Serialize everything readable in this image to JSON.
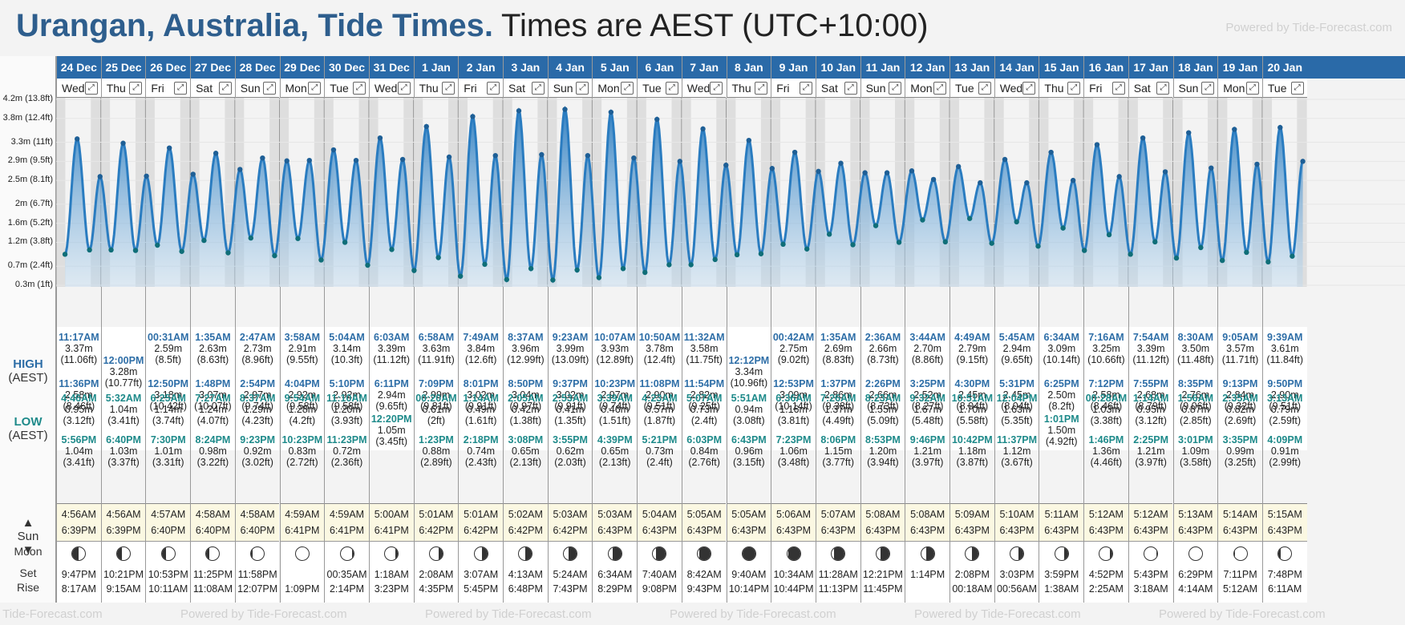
{
  "title": {
    "location": "Urangan, Australia, Tide Times.",
    "timezone": "Times are AEST (UTC+10:00)",
    "powered": "Powered by Tide-Forecast.com"
  },
  "labels": {
    "high": "HIGH",
    "high_sub": "(AEST)",
    "low": "LOW",
    "low_sub": "(AEST)",
    "sun": "Sun",
    "moon": "Moon",
    "set": "Set",
    "rise": "Rise"
  },
  "y_axis": [
    "4.2m (13.8ft)",
    "3.8m (12.4ft)",
    "3.3m (11ft)",
    "2.9m (9.5ft)",
    "2.5m (8.1ft)",
    "2m (6.7ft)",
    "1.6m (5.2ft)",
    "1.2m (3.8ft)",
    "0.7m (2.4ft)",
    "0.3m (1ft)"
  ],
  "footer": [
    "Powered by Tide-Forecast.com",
    "Powered by Tide-Forecast.com",
    "Powered by Tide-Forecast.com",
    "Powered by Tide-Forecast.com",
    "Powered by Tide-Forecast.com",
    "Powered by Tide-Forecast.com"
  ],
  "days": [
    {
      "date": "24 Dec",
      "dow": "Wed",
      "highs": [
        [
          "11:17AM",
          "3.37m",
          "(11.06ft)"
        ],
        [
          "11:36PM",
          "2.58m",
          "(8.46ft)"
        ]
      ],
      "lows": [
        [
          "4:46AM",
          "0.95m",
          "(3.12ft)"
        ],
        [
          "5:56PM",
          "1.04m",
          "(3.41ft)"
        ]
      ],
      "sunrise": "4:56AM",
      "sunset": "6:39PM",
      "moon_set": "9:47PM",
      "moon_rise": "8:17AM"
    },
    {
      "date": "25 Dec",
      "dow": "Thu",
      "highs": [
        [
          "12:00PM",
          "3.28m",
          "(10.77ft)"
        ]
      ],
      "lows": [
        [
          "5:32AM",
          "1.04m",
          "(3.41ft)"
        ],
        [
          "6:40PM",
          "1.03m",
          "(3.37ft)"
        ]
      ],
      "sunrise": "4:56AM",
      "sunset": "6:39PM",
      "moon_set": "10:21PM",
      "moon_rise": "9:15AM"
    },
    {
      "date": "26 Dec",
      "dow": "Fri",
      "highs": [
        [
          "00:31AM",
          "2.59m",
          "(8.5ft)"
        ],
        [
          "12:50PM",
          "3.18m",
          "(10.42ft)"
        ]
      ],
      "lows": [
        [
          "6:25AM",
          "1.14m",
          "(3.74ft)"
        ],
        [
          "7:30PM",
          "1.01m",
          "(3.31ft)"
        ]
      ],
      "sunrise": "4:57AM",
      "sunset": "6:40PM",
      "moon_set": "10:53PM",
      "moon_rise": "10:11AM"
    },
    {
      "date": "27 Dec",
      "dow": "Sat",
      "highs": [
        [
          "1:35AM",
          "2.63m",
          "(8.63ft)"
        ],
        [
          "1:48PM",
          "3.07m",
          "(10.07ft)"
        ]
      ],
      "lows": [
        [
          "7:27AM",
          "1.24m",
          "(4.07ft)"
        ],
        [
          "8:24PM",
          "0.98m",
          "(3.22ft)"
        ]
      ],
      "sunrise": "4:58AM",
      "sunset": "6:40PM",
      "moon_set": "11:25PM",
      "moon_rise": "11:08AM"
    },
    {
      "date": "28 Dec",
      "dow": "Sun",
      "highs": [
        [
          "2:47AM",
          "2.73m",
          "(8.96ft)"
        ],
        [
          "2:54PM",
          "2.97m",
          "(9.74ft)"
        ]
      ],
      "lows": [
        [
          "8:37AM",
          "1.29m",
          "(4.23ft)"
        ],
        [
          "9:23PM",
          "0.92m",
          "(3.02ft)"
        ]
      ],
      "sunrise": "4:58AM",
      "sunset": "6:40PM",
      "moon_set": "11:58PM",
      "moon_rise": "12:07PM"
    },
    {
      "date": "29 Dec",
      "dow": "Mon",
      "highs": [
        [
          "3:58AM",
          "2.91m",
          "(9.55ft)"
        ],
        [
          "4:04PM",
          "2.92m",
          "(9.58ft)"
        ]
      ],
      "lows": [
        [
          "9:54AM",
          "1.28m",
          "(4.2ft)"
        ],
        [
          "10:23PM",
          "0.83m",
          "(2.72ft)"
        ]
      ],
      "sunrise": "4:59AM",
      "sunset": "6:41PM",
      "moon_set": "",
      "moon_rise": "1:09PM"
    },
    {
      "date": "30 Dec",
      "dow": "Tue",
      "highs": [
        [
          "5:04AM",
          "3.14m",
          "(10.3ft)"
        ],
        [
          "5:10PM",
          "2.92m",
          "(9.58ft)"
        ]
      ],
      "lows": [
        [
          "11:10AM",
          "1.20m",
          "(3.93ft)"
        ],
        [
          "11:23PM",
          "0.72m",
          "(2.36ft)"
        ]
      ],
      "sunrise": "4:59AM",
      "sunset": "6:41PM",
      "moon_set": "00:35AM",
      "moon_rise": "2:14PM"
    },
    {
      "date": "31 Dec",
      "dow": "Wed",
      "highs": [
        [
          "6:03AM",
          "3.39m",
          "(11.12ft)"
        ],
        [
          "6:11PM",
          "2.94m",
          "(9.65ft)"
        ]
      ],
      "lows": [
        [
          "12:20PM",
          "1.05m",
          "(3.45ft)"
        ]
      ],
      "sunrise": "5:00AM",
      "sunset": "6:41PM",
      "moon_set": "1:18AM",
      "moon_rise": "3:23PM"
    },
    {
      "date": "1 Jan",
      "dow": "Thu",
      "highs": [
        [
          "6:58AM",
          "3.63m",
          "(11.91ft)"
        ],
        [
          "7:09PM",
          "2.99m",
          "(9.81ft)"
        ]
      ],
      "lows": [
        [
          "00:20AM",
          "0.61m",
          "(2ft)"
        ],
        [
          "1:23PM",
          "0.88m",
          "(2.89ft)"
        ]
      ],
      "sunrise": "5:01AM",
      "sunset": "6:42PM",
      "moon_set": "2:08AM",
      "moon_rise": "4:35PM"
    },
    {
      "date": "2 Jan",
      "dow": "Fri",
      "highs": [
        [
          "7:49AM",
          "3.84m",
          "(12.6ft)"
        ],
        [
          "8:01PM",
          "3.02m",
          "(9.91ft)"
        ]
      ],
      "lows": [
        [
          "1:14AM",
          "0.49m",
          "(1.61ft)"
        ],
        [
          "2:18PM",
          "0.74m",
          "(2.43ft)"
        ]
      ],
      "sunrise": "5:01AM",
      "sunset": "6:42PM",
      "moon_set": "3:07AM",
      "moon_rise": "5:45PM"
    },
    {
      "date": "3 Jan",
      "dow": "Sat",
      "highs": [
        [
          "8:37AM",
          "3.96m",
          "(12.99ft)"
        ],
        [
          "8:50PM",
          "3.04m",
          "(9.97ft)"
        ]
      ],
      "lows": [
        [
          "2:05AM",
          "0.42m",
          "(1.38ft)"
        ],
        [
          "3:08PM",
          "0.65m",
          "(2.13ft)"
        ]
      ],
      "sunrise": "5:02AM",
      "sunset": "6:42PM",
      "moon_set": "4:13AM",
      "moon_rise": "6:48PM"
    },
    {
      "date": "4 Jan",
      "dow": "Sun",
      "highs": [
        [
          "9:23AM",
          "3.99m",
          "(13.09ft)"
        ],
        [
          "9:37PM",
          "3.02m",
          "(9.91ft)"
        ]
      ],
      "lows": [
        [
          "2:53AM",
          "0.41m",
          "(1.35ft)"
        ],
        [
          "3:55PM",
          "0.62m",
          "(2.03ft)"
        ]
      ],
      "sunrise": "5:03AM",
      "sunset": "6:42PM",
      "moon_set": "5:24AM",
      "moon_rise": "7:43PM"
    },
    {
      "date": "5 Jan",
      "dow": "Mon",
      "highs": [
        [
          "10:07AM",
          "3.93m",
          "(12.89ft)"
        ],
        [
          "10:23PM",
          "2.97m",
          "(9.74ft)"
        ]
      ],
      "lows": [
        [
          "3:39AM",
          "0.46m",
          "(1.51ft)"
        ],
        [
          "4:39PM",
          "0.65m",
          "(2.13ft)"
        ]
      ],
      "sunrise": "5:03AM",
      "sunset": "6:43PM",
      "moon_set": "6:34AM",
      "moon_rise": "8:29PM"
    },
    {
      "date": "6 Jan",
      "dow": "Tue",
      "highs": [
        [
          "10:50AM",
          "3.78m",
          "(12.4ft)"
        ],
        [
          "11:08PM",
          "2.90m",
          "(9.51ft)"
        ]
      ],
      "lows": [
        [
          "4:23AM",
          "0.57m",
          "(1.87ft)"
        ],
        [
          "5:21PM",
          "0.73m",
          "(2.4ft)"
        ]
      ],
      "sunrise": "5:04AM",
      "sunset": "6:43PM",
      "moon_set": "7:40AM",
      "moon_rise": "9:08PM"
    },
    {
      "date": "7 Jan",
      "dow": "Wed",
      "highs": [
        [
          "11:32AM",
          "3.58m",
          "(11.75ft)"
        ],
        [
          "11:54PM",
          "2.82m",
          "(9.25ft)"
        ]
      ],
      "lows": [
        [
          "5:07AM",
          "0.73m",
          "(2.4ft)"
        ],
        [
          "6:03PM",
          "0.84m",
          "(2.76ft)"
        ]
      ],
      "sunrise": "5:05AM",
      "sunset": "6:43PM",
      "moon_set": "8:42AM",
      "moon_rise": "9:43PM"
    },
    {
      "date": "8 Jan",
      "dow": "Thu",
      "highs": [
        [
          "12:12PM",
          "3.34m",
          "(10.96ft)"
        ]
      ],
      "lows": [
        [
          "5:51AM",
          "0.94m",
          "(3.08ft)"
        ],
        [
          "6:43PM",
          "0.96m",
          "(3.15ft)"
        ]
      ],
      "sunrise": "5:05AM",
      "sunset": "6:43PM",
      "moon_set": "9:40AM",
      "moon_rise": "10:14PM"
    },
    {
      "date": "9 Jan",
      "dow": "Fri",
      "highs": [
        [
          "00:42AM",
          "2.75m",
          "(9.02ft)"
        ],
        [
          "12:53PM",
          "3.09m",
          "(10.14ft)"
        ]
      ],
      "lows": [
        [
          "6:36AM",
          "1.16m",
          "(3.81ft)"
        ],
        [
          "7:23PM",
          "1.06m",
          "(3.48ft)"
        ]
      ],
      "sunrise": "5:06AM",
      "sunset": "6:43PM",
      "moon_set": "10:34AM",
      "moon_rise": "10:44PM"
    },
    {
      "date": "10 Jan",
      "dow": "Sat",
      "highs": [
        [
          "1:35AM",
          "2.69m",
          "(8.83ft)"
        ],
        [
          "1:37PM",
          "2.86m",
          "(9.38ft)"
        ]
      ],
      "lows": [
        [
          "7:26AM",
          "1.37m",
          "(4.49ft)"
        ],
        [
          "8:06PM",
          "1.15m",
          "(3.77ft)"
        ]
      ],
      "sunrise": "5:07AM",
      "sunset": "6:43PM",
      "moon_set": "11:28AM",
      "moon_rise": "11:13PM"
    },
    {
      "date": "11 Jan",
      "dow": "Sun",
      "highs": [
        [
          "2:36AM",
          "2.66m",
          "(8.73ft)"
        ],
        [
          "2:26PM",
          "2.66m",
          "(8.73ft)"
        ]
      ],
      "lows": [
        [
          "8:23AM",
          "1.55m",
          "(5.09ft)"
        ],
        [
          "8:53PM",
          "1.20m",
          "(3.94ft)"
        ]
      ],
      "sunrise": "5:08AM",
      "sunset": "6:43PM",
      "moon_set": "12:21PM",
      "moon_rise": "11:45PM"
    },
    {
      "date": "12 Jan",
      "dow": "Mon",
      "highs": [
        [
          "3:44AM",
          "2.70m",
          "(8.86ft)"
        ],
        [
          "3:25PM",
          "2.52m",
          "(8.27ft)"
        ]
      ],
      "lows": [
        [
          "9:32AM",
          "1.67m",
          "(5.48ft)"
        ],
        [
          "9:46PM",
          "1.21m",
          "(3.97ft)"
        ]
      ],
      "sunrise": "5:08AM",
      "sunset": "6:43PM",
      "moon_set": "1:14PM",
      "moon_rise": ""
    },
    {
      "date": "13 Jan",
      "dow": "Tue",
      "highs": [
        [
          "4:49AM",
          "2.79m",
          "(9.15ft)"
        ],
        [
          "4:30PM",
          "2.45m",
          "(8.04ft)"
        ]
      ],
      "lows": [
        [
          "10:51AM",
          "1.70m",
          "(5.58ft)"
        ],
        [
          "10:42PM",
          "1.18m",
          "(3.87ft)"
        ]
      ],
      "sunrise": "5:09AM",
      "sunset": "6:43PM",
      "moon_set": "2:08PM",
      "moon_rise": "00:18AM"
    },
    {
      "date": "14 Jan",
      "dow": "Wed",
      "highs": [
        [
          "5:45AM",
          "2.94m",
          "(9.65ft)"
        ],
        [
          "5:31PM",
          "2.45m",
          "(8.04ft)"
        ]
      ],
      "lows": [
        [
          "12:04PM",
          "1.63m",
          "(5.35ft)"
        ],
        [
          "11:37PM",
          "1.12m",
          "(3.67ft)"
        ]
      ],
      "sunrise": "5:10AM",
      "sunset": "6:43PM",
      "moon_set": "3:03PM",
      "moon_rise": "00:56AM"
    },
    {
      "date": "15 Jan",
      "dow": "Thu",
      "highs": [
        [
          "6:34AM",
          "3.09m",
          "(10.14ft)"
        ],
        [
          "6:25PM",
          "2.50m",
          "(8.2ft)"
        ]
      ],
      "lows": [
        [
          "1:01PM",
          "1.50m",
          "(4.92ft)"
        ]
      ],
      "sunrise": "5:11AM",
      "sunset": "6:43PM",
      "moon_set": "3:59PM",
      "moon_rise": "1:38AM"
    },
    {
      "date": "16 Jan",
      "dow": "Fri",
      "highs": [
        [
          "7:16AM",
          "3.25m",
          "(10.66ft)"
        ],
        [
          "7:12PM",
          "2.58m",
          "(8.46ft)"
        ]
      ],
      "lows": [
        [
          "00:28AM",
          "1.03m",
          "(3.38ft)"
        ],
        [
          "1:46PM",
          "1.36m",
          "(4.46ft)"
        ]
      ],
      "sunrise": "5:12AM",
      "sunset": "6:43PM",
      "moon_set": "4:52PM",
      "moon_rise": "2:25AM"
    },
    {
      "date": "17 Jan",
      "dow": "Sat",
      "highs": [
        [
          "7:54AM",
          "3.39m",
          "(11.12ft)"
        ],
        [
          "7:55PM",
          "2.68m",
          "(8.79ft)"
        ]
      ],
      "lows": [
        [
          "1:14AM",
          "0.95m",
          "(3.12ft)"
        ],
        [
          "2:25PM",
          "1.21m",
          "(3.97ft)"
        ]
      ],
      "sunrise": "5:12AM",
      "sunset": "6:43PM",
      "moon_set": "5:43PM",
      "moon_rise": "3:18AM"
    },
    {
      "date": "18 Jan",
      "dow": "Sun",
      "highs": [
        [
          "8:30AM",
          "3.50m",
          "(11.48ft)"
        ],
        [
          "8:35PM",
          "2.76m",
          "(9.06ft)"
        ]
      ],
      "lows": [
        [
          "1:56AM",
          "0.87m",
          "(2.85ft)"
        ],
        [
          "3:01PM",
          "1.09m",
          "(3.58ft)"
        ]
      ],
      "sunrise": "5:13AM",
      "sunset": "6:43PM",
      "moon_set": "6:29PM",
      "moon_rise": "4:14AM"
    },
    {
      "date": "19 Jan",
      "dow": "Mon",
      "highs": [
        [
          "9:05AM",
          "3.57m",
          "(11.71ft)"
        ],
        [
          "9:13PM",
          "2.84m",
          "(9.32ft)"
        ]
      ],
      "lows": [
        [
          "2:35AM",
          "0.82m",
          "(2.69ft)"
        ],
        [
          "3:35PM",
          "0.99m",
          "(3.25ft)"
        ]
      ],
      "sunrise": "5:14AM",
      "sunset": "6:43PM",
      "moon_set": "7:11PM",
      "moon_rise": "5:12AM"
    },
    {
      "date": "20 Jan",
      "dow": "Tue",
      "highs": [
        [
          "9:39AM",
          "3.61m",
          "(11.84ft)"
        ],
        [
          "9:50PM",
          "2.90m",
          "(9.51ft)"
        ]
      ],
      "lows": [
        [
          "3:13AM",
          "0.79m",
          "(2.59ft)"
        ],
        [
          "4:09PM",
          "0.91m",
          "(2.99ft)"
        ]
      ],
      "sunrise": "5:15AM",
      "sunset": "6:43PM",
      "moon_set": "7:48PM",
      "moon_rise": "6:11AM"
    }
  ],
  "moon_phases": [
    0.25,
    0.3,
    0.35,
    0.4,
    0.45,
    0.5,
    0.55,
    0.6,
    0.65,
    0.7,
    0.75,
    0.8,
    0.85,
    0.9,
    0.95,
    1.0,
    0.95,
    0.9,
    0.85,
    0.8,
    0.75,
    0.7,
    0.65,
    0.6,
    0.55,
    0.5,
    0.45,
    0.4
  ],
  "colors": {
    "header": "#2a6aa8",
    "curve": "#2a7cc0",
    "high_text": "#2e6ea7",
    "low_text": "#1e8a8a"
  }
}
